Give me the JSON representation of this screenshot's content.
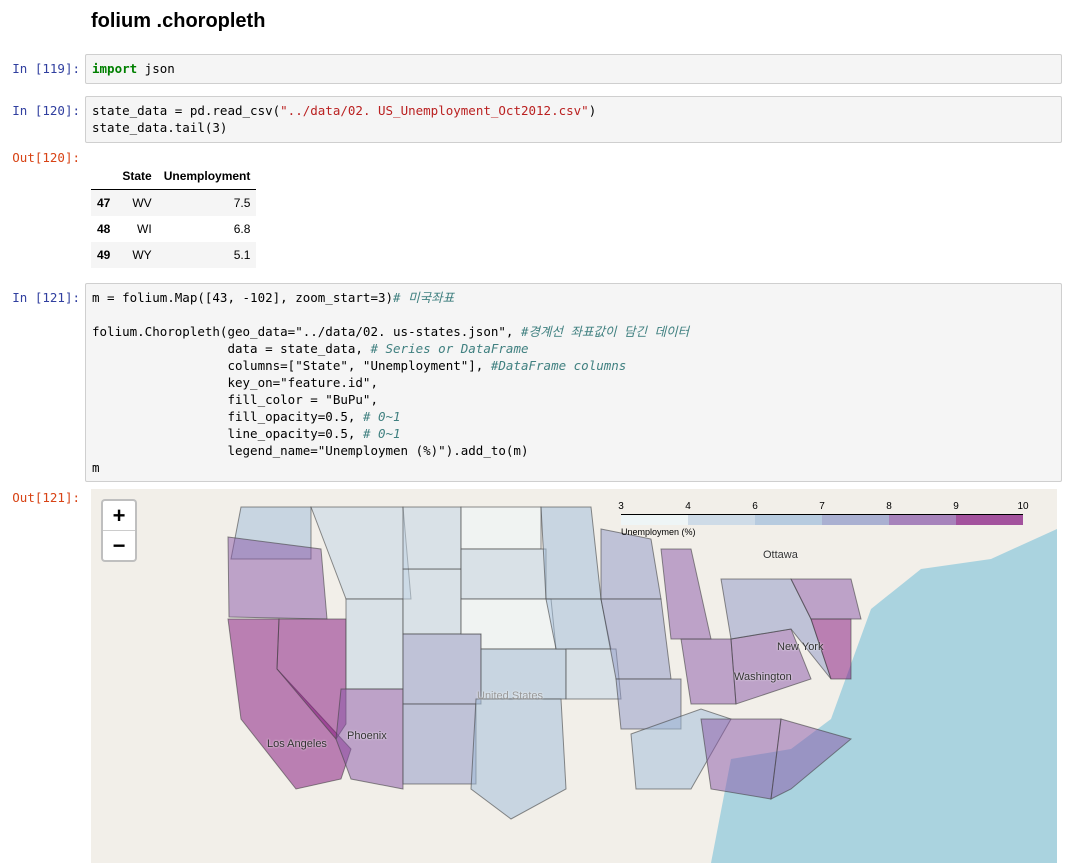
{
  "heading": "folium .choropleth",
  "cells": [
    {
      "prompt": "In [119]:",
      "code": "import json"
    },
    {
      "prompt": "In [120]:",
      "code_line1_a": "state_data = pd.read_csv(",
      "code_line1_str": "\"../data/02. US_Unemployment_Oct2012.csv\"",
      "code_line1_b": ")",
      "code_line2": "state_data.tail(3)"
    },
    {
      "prompt": "Out[120]:"
    },
    {
      "prompt": "In [121]:"
    },
    {
      "prompt": "Out[121]:"
    }
  ],
  "table": {
    "columns": [
      "",
      "State",
      "Unemployment"
    ],
    "rows": [
      [
        "47",
        "WV",
        "7.5"
      ],
      [
        "48",
        "WI",
        "6.8"
      ],
      [
        "49",
        "WY",
        "5.1"
      ]
    ]
  },
  "code121": {
    "l1": "m = folium.Map([43, -102], zoom_start=3)",
    "l1c": "# 미국좌표",
    "l2": "folium.Choropleth(geo_data=\"../data/02. us-states.json\", ",
    "l2c": "#경계선 좌표값이 담긴 데이터",
    "l3": "                  data = state_data, ",
    "l3c": "# Series or DataFrame",
    "l4": "                  columns=[\"State\", \"Unemployment\"], ",
    "l4c": "#DataFrame columns",
    "l5": "                  key_on=\"feature.id\",",
    "l6": "                  fill_color = \"BuPu\",",
    "l7": "                  fill_opacity=0.5, ",
    "l7c": "# 0~1",
    "l8": "                  line_opacity=0.5, ",
    "l8c": "# 0~1",
    "l9": "                  legend_name=\"Unemploymen (%)\").add_to(m)",
    "l10": "m"
  },
  "map": {
    "zoom_in": "+",
    "zoom_out": "−",
    "legend": {
      "title": "Unemploymen (%)",
      "ticks": [
        "3",
        "4",
        "6",
        "7",
        "8",
        "9",
        "10"
      ],
      "colors": [
        "#edf8fb",
        "#bfd3e6",
        "#9ebcda",
        "#8c96c6",
        "#8856a7",
        "#810f7c"
      ]
    },
    "labels": [
      "Ottawa",
      "New York",
      "Washington",
      "United States",
      "Phoenix",
      "Los Angeles"
    ]
  }
}
